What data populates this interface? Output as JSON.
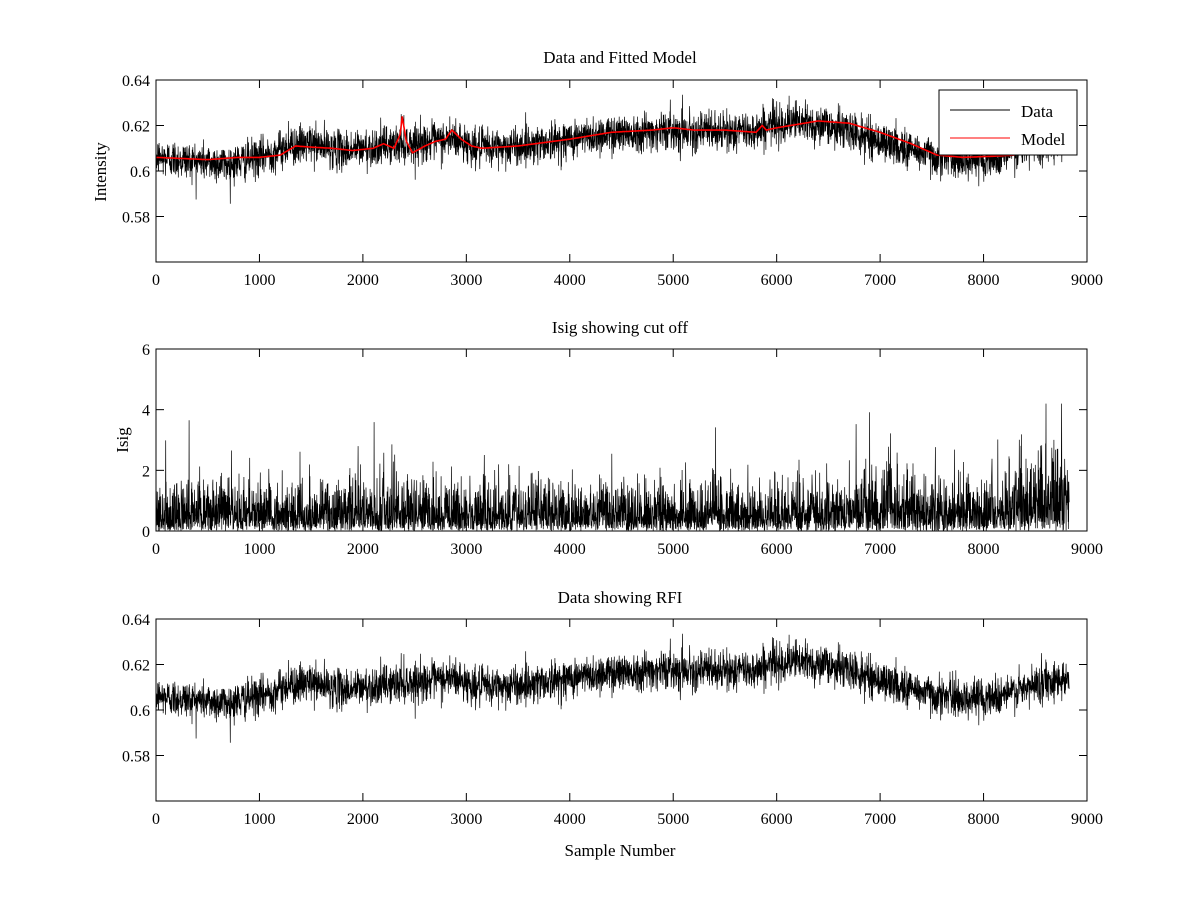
{
  "chart_data": [
    {
      "type": "line",
      "title": "Data and Fitted Model",
      "xlabel": "",
      "ylabel": "Intensity",
      "xlim": [
        0,
        9000
      ],
      "ylim": [
        0.56,
        0.64
      ],
      "xticks": [
        0,
        1000,
        2000,
        3000,
        4000,
        5000,
        6000,
        7000,
        8000,
        9000
      ],
      "yticks": [
        0.58,
        0.6,
        0.62,
        0.64
      ],
      "xtick_labels": [
        "0",
        "1000",
        "2000",
        "3000",
        "4000",
        "5000",
        "6000",
        "7000",
        "8000",
        "9000"
      ],
      "ytick_labels": [
        "0.58",
        "0.6",
        "0.62",
        "0.64"
      ],
      "legend": {
        "position": "top-right",
        "entries": [
          "Data",
          "Model"
        ]
      },
      "series": [
        {
          "name": "Data",
          "color": "#000000",
          "noise": 0.0042,
          "baseline": {
            "x": [
              0,
              500,
              700,
              1000,
              1300,
              1500,
              1800,
              2000,
              2200,
              2400,
              2700,
              2900,
              3100,
              3500,
              4000,
              4500,
              5000,
              5500,
              5800,
              6000,
              6300,
              6600,
              7000,
              7500,
              7800,
              8100,
              8400,
              8600,
              8830
            ],
            "y": [
              0.606,
              0.604,
              0.603,
              0.606,
              0.611,
              0.612,
              0.609,
              0.61,
              0.611,
              0.612,
              0.613,
              0.614,
              0.61,
              0.611,
              0.614,
              0.617,
              0.618,
              0.617,
              0.618,
              0.621,
              0.621,
              0.619,
              0.613,
              0.607,
              0.605,
              0.606,
              0.609,
              0.613,
              0.614
            ]
          }
        },
        {
          "name": "Model",
          "color": "#ff0000",
          "x": [
            0,
            500,
            800,
            1000,
            1200,
            1350,
            1500,
            1700,
            1900,
            2100,
            2200,
            2300,
            2360,
            2380,
            2420,
            2480,
            2600,
            2700,
            2800,
            2860,
            2950,
            3050,
            3150,
            3500,
            4000,
            4400,
            4800,
            5000,
            5200,
            5500,
            5800,
            5860,
            5900,
            6000,
            6400,
            6700,
            7000,
            7300,
            7550,
            7800,
            8100,
            8300
          ],
          "y": [
            0.606,
            0.605,
            0.606,
            0.606,
            0.607,
            0.611,
            0.6105,
            0.61,
            0.609,
            0.61,
            0.612,
            0.61,
            0.616,
            0.624,
            0.613,
            0.608,
            0.611,
            0.613,
            0.614,
            0.618,
            0.614,
            0.611,
            0.61,
            0.611,
            0.614,
            0.617,
            0.618,
            0.619,
            0.618,
            0.618,
            0.617,
            0.62,
            0.618,
            0.619,
            0.622,
            0.621,
            0.617,
            0.612,
            0.607,
            0.606,
            0.6065,
            0.607
          ]
        }
      ]
    },
    {
      "type": "line",
      "title": "Isig showing cut off",
      "xlabel": "",
      "ylabel": "Isig",
      "xlim": [
        0,
        9000
      ],
      "ylim": [
        0,
        6
      ],
      "xticks": [
        0,
        1000,
        2000,
        3000,
        4000,
        5000,
        6000,
        7000,
        8000,
        9000
      ],
      "yticks": [
        0,
        2,
        4,
        6
      ],
      "xtick_labels": [
        "0",
        "1000",
        "2000",
        "3000",
        "4000",
        "5000",
        "6000",
        "7000",
        "8000",
        "9000"
      ],
      "ytick_labels": [
        "0",
        "2",
        "4",
        "6"
      ],
      "series": [
        {
          "name": "Isig",
          "color": "#000000",
          "x_max": 8830,
          "scale": {
            "x": [
              0,
              6600,
              7000,
              8000,
              8400,
              8830
            ],
            "y": [
              0.8,
              0.8,
              1.0,
              0.8,
              1.2,
              1.3
            ]
          },
          "peak": 4.2
        }
      ]
    },
    {
      "type": "line",
      "title": "Data showing RFI",
      "xlabel": "Sample Number",
      "ylabel": "",
      "xlim": [
        0,
        9000
      ],
      "ylim": [
        0.56,
        0.64
      ],
      "xticks": [
        0,
        1000,
        2000,
        3000,
        4000,
        5000,
        6000,
        7000,
        8000,
        9000
      ],
      "yticks": [
        0.58,
        0.6,
        0.62,
        0.64
      ],
      "xtick_labels": [
        "0",
        "1000",
        "2000",
        "3000",
        "4000",
        "5000",
        "6000",
        "7000",
        "8000",
        "9000"
      ],
      "ytick_labels": [
        "0.58",
        "0.6",
        "0.62",
        "0.64"
      ],
      "series": [
        {
          "name": "Data",
          "color": "#000000",
          "same_as": "panel1.Data"
        }
      ]
    }
  ]
}
